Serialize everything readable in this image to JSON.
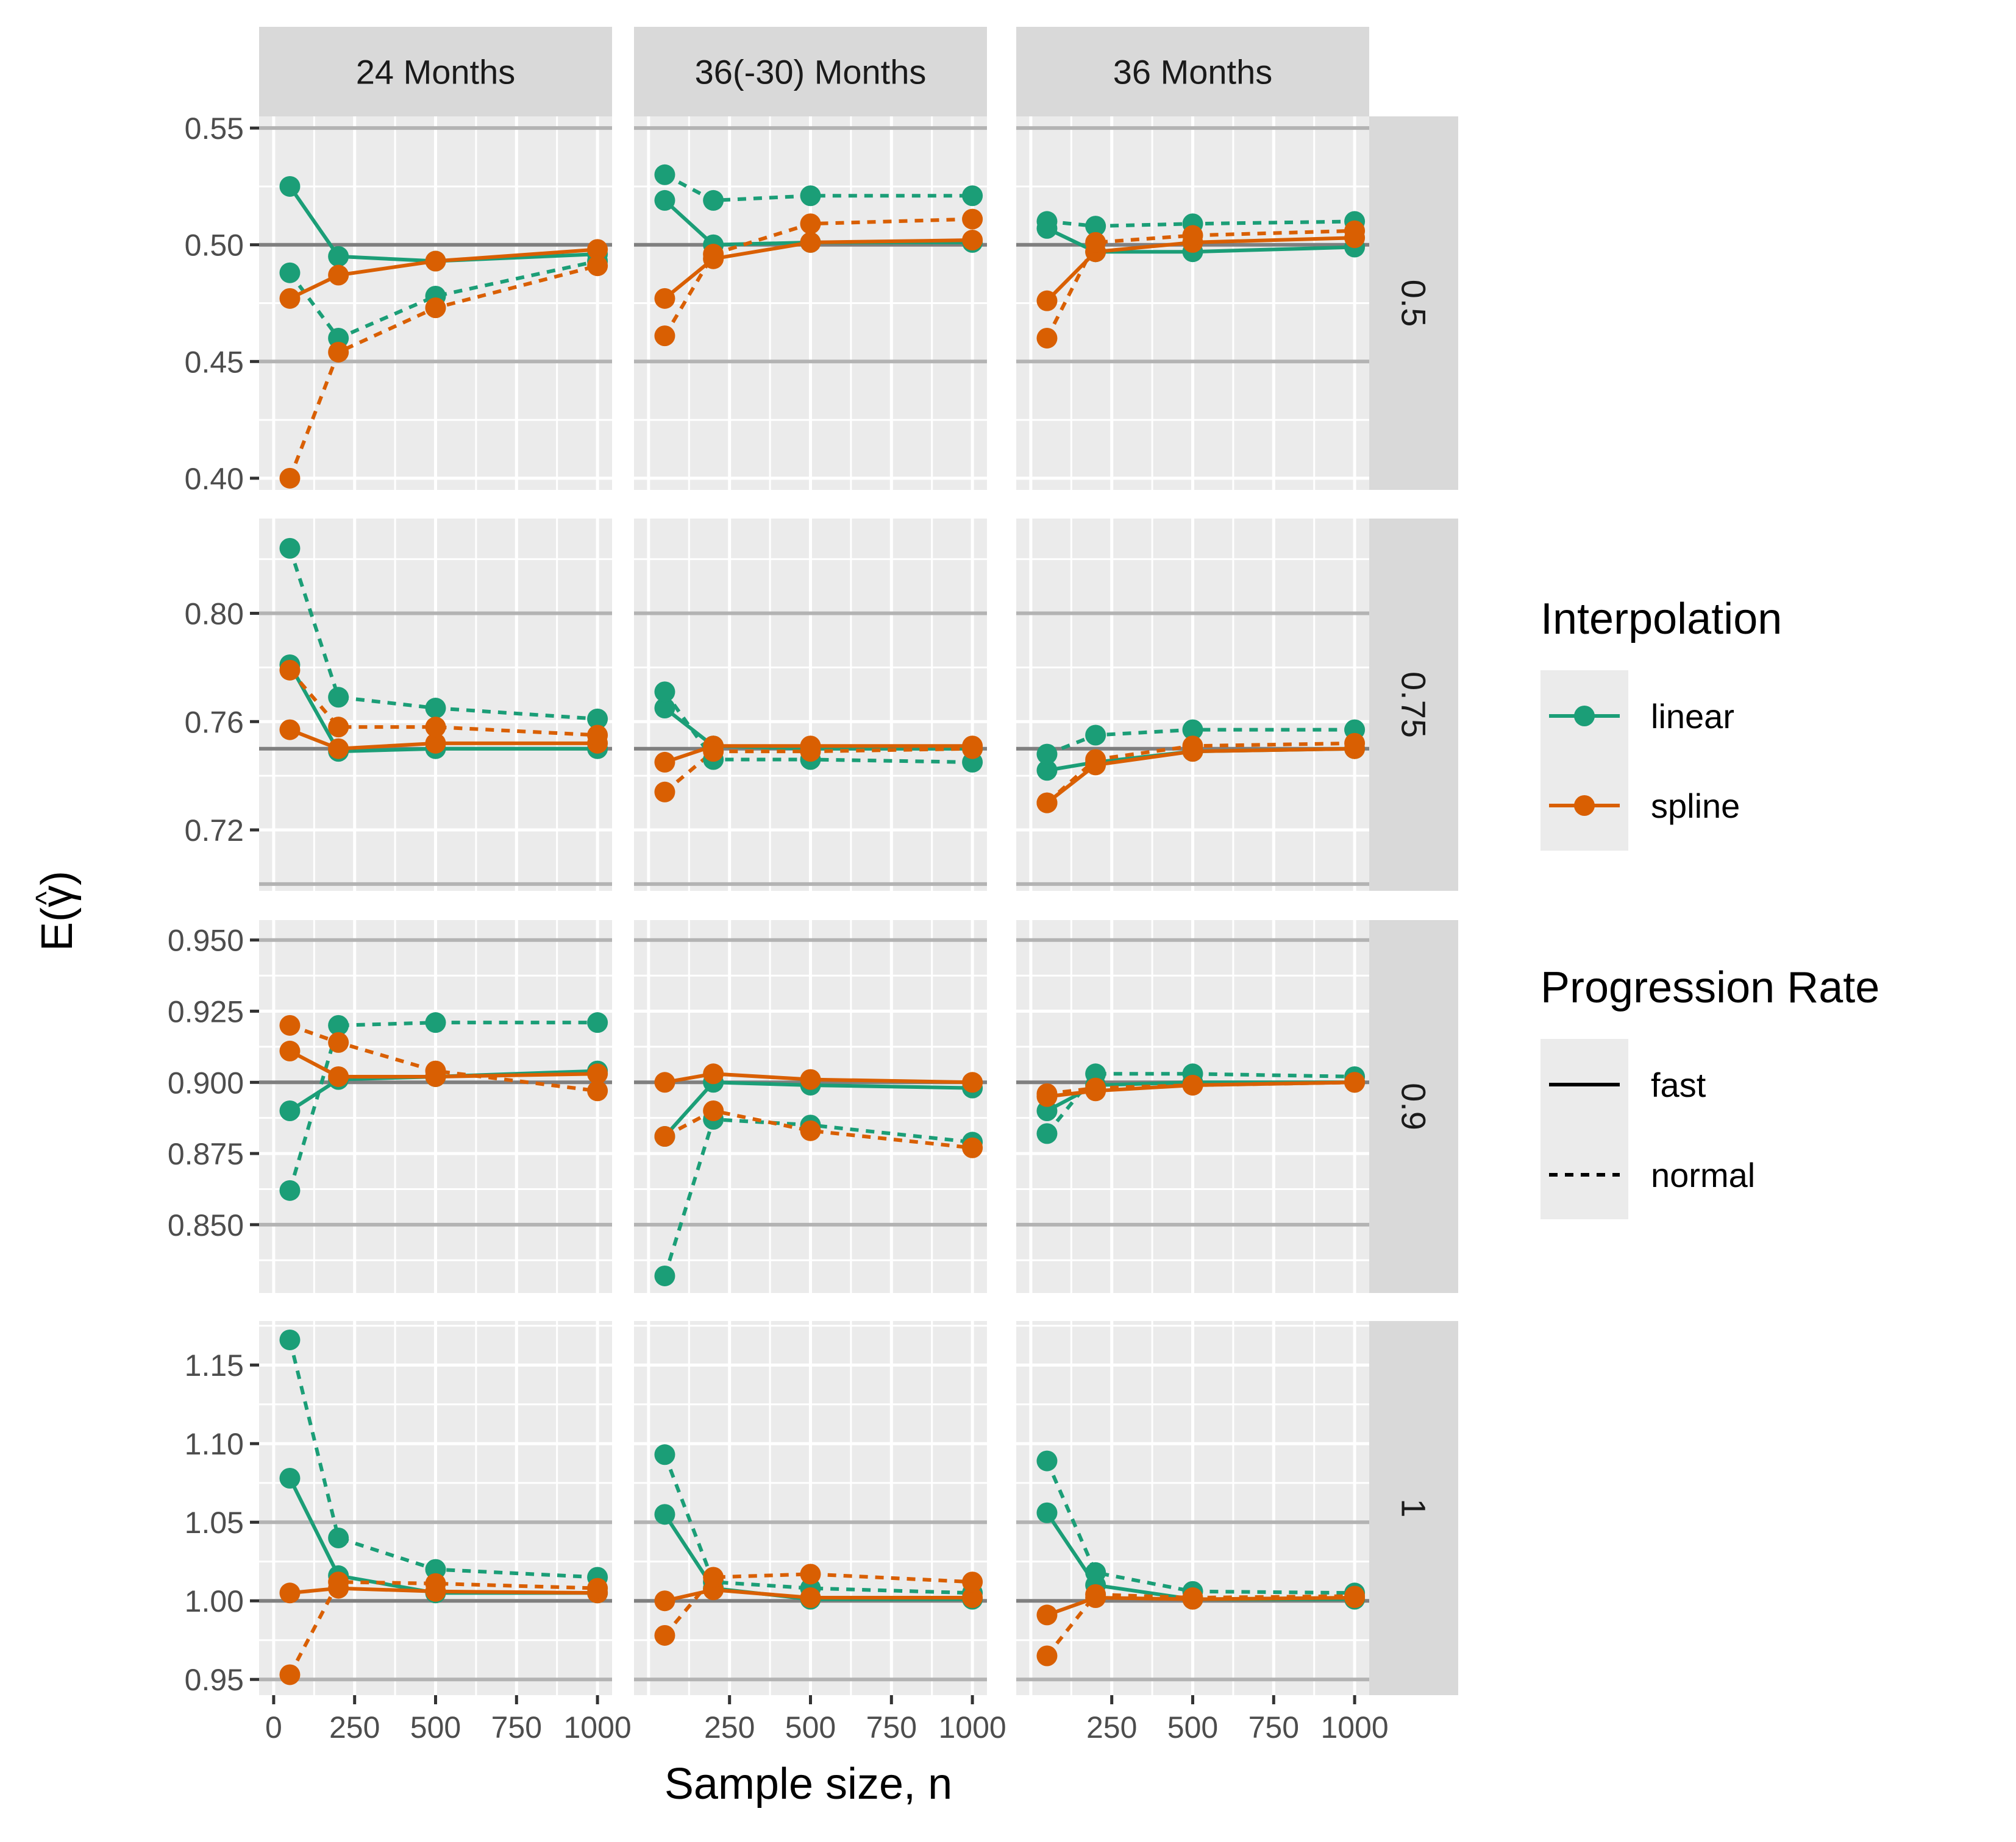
{
  "chart_data": {
    "type": "line",
    "xlabel": "Sample size, n",
    "ylabel_prefix": "E(",
    "ylabel_symbol": "γ",
    "ylabel_hat": "^",
    "ylabel_suffix": ")",
    "columns": [
      "24 Months",
      "36(-30) Months",
      "36 Months"
    ],
    "rows": [
      "0.5",
      "0.75",
      "0.9",
      "1"
    ],
    "x_ticks": [
      0,
      250,
      500,
      750,
      1000
    ],
    "x_tick_labels": [
      "0",
      "250",
      "500",
      "750",
      "1000"
    ],
    "xlim": [
      -45,
      1045
    ],
    "row_axes": [
      {
        "ylim": [
          0.395,
          0.555
        ],
        "ticks": [
          0.4,
          0.45,
          0.5,
          0.55
        ],
        "tick_labels": [
          "0.40",
          "0.45",
          "0.50",
          "0.55"
        ],
        "major": [
          0.45,
          0.55
        ],
        "ref": 0.5
      },
      {
        "ylim": [
          0.6975,
          0.835
        ],
        "ticks": [
          0.72,
          0.76,
          0.8
        ],
        "tick_labels": [
          "0.72",
          "0.76",
          "0.80"
        ],
        "major": [
          0.7,
          0.8
        ],
        "ref": 0.75
      },
      {
        "ylim": [
          0.826,
          0.957
        ],
        "ticks": [
          0.85,
          0.875,
          0.9,
          0.925,
          0.95
        ],
        "tick_labels": [
          "0.850",
          "0.875",
          "0.900",
          "0.925",
          "0.950"
        ],
        "major": [
          0.85,
          0.95
        ],
        "ref": 0.9
      },
      {
        "ylim": [
          0.94,
          1.178
        ],
        "ticks": [
          0.95,
          1.0,
          1.05,
          1.1,
          1.15
        ],
        "tick_labels": [
          "0.95",
          "1.00",
          "1.05",
          "1.10",
          "1.15"
        ],
        "major": [
          0.95,
          1.05
        ],
        "ref": 1.0
      }
    ],
    "colors": {
      "linear": "#1b9e77",
      "spline": "#d95f02",
      "background": "#ebebeb",
      "strip": "#d9d9d9",
      "grid": "#ffffff",
      "major_line": "#b3b3b3",
      "ref_line": "#7f7f7f"
    },
    "legend": {
      "interpolation_title": "Interpolation",
      "interpolation_items": [
        "linear",
        "spline"
      ],
      "rate_title": "Progression Rate",
      "rate_items": [
        "fast",
        "normal"
      ],
      "placement": "right"
    },
    "panels": [
      {
        "row": 0,
        "col": 0,
        "series": [
          {
            "interp": "linear",
            "rate": "fast",
            "x": [
              50,
              200,
              500,
              1000
            ],
            "y": [
              0.525,
              0.495,
              0.493,
              0.496
            ]
          },
          {
            "interp": "linear",
            "rate": "normal",
            "x": [
              50,
              200,
              500,
              1000
            ],
            "y": [
              0.488,
              0.46,
              0.478,
              0.493
            ]
          },
          {
            "interp": "spline",
            "rate": "fast",
            "x": [
              50,
              200,
              500,
              1000
            ],
            "y": [
              0.477,
              0.487,
              0.493,
              0.498
            ]
          },
          {
            "interp": "spline",
            "rate": "normal",
            "x": [
              50,
              200,
              500,
              1000
            ],
            "y": [
              0.4,
              0.454,
              0.473,
              0.491
            ]
          }
        ]
      },
      {
        "row": 0,
        "col": 1,
        "series": [
          {
            "interp": "linear",
            "rate": "fast",
            "x": [
              50,
              200,
              500,
              1000
            ],
            "y": [
              0.519,
              0.5,
              0.501,
              0.501
            ]
          },
          {
            "interp": "linear",
            "rate": "normal",
            "x": [
              50,
              200,
              500,
              1000
            ],
            "y": [
              0.53,
              0.519,
              0.521,
              0.521
            ]
          },
          {
            "interp": "spline",
            "rate": "fast",
            "x": [
              50,
              200,
              500,
              1000
            ],
            "y": [
              0.477,
              0.494,
              0.501,
              0.502
            ]
          },
          {
            "interp": "spline",
            "rate": "normal",
            "x": [
              50,
              200,
              500,
              1000
            ],
            "y": [
              0.461,
              0.496,
              0.509,
              0.511
            ]
          }
        ]
      },
      {
        "row": 0,
        "col": 2,
        "series": [
          {
            "interp": "linear",
            "rate": "fast",
            "x": [
              50,
              200,
              500,
              1000
            ],
            "y": [
              0.507,
              0.497,
              0.497,
              0.499
            ]
          },
          {
            "interp": "linear",
            "rate": "normal",
            "x": [
              50,
              200,
              500,
              1000
            ],
            "y": [
              0.51,
              0.508,
              0.509,
              0.51
            ]
          },
          {
            "interp": "spline",
            "rate": "fast",
            "x": [
              50,
              200,
              500,
              1000
            ],
            "y": [
              0.476,
              0.497,
              0.501,
              0.503
            ]
          },
          {
            "interp": "spline",
            "rate": "normal",
            "x": [
              50,
              200,
              500,
              1000
            ],
            "y": [
              0.46,
              0.501,
              0.504,
              0.506
            ]
          }
        ]
      },
      {
        "row": 1,
        "col": 0,
        "series": [
          {
            "interp": "linear",
            "rate": "fast",
            "x": [
              50,
              200,
              500,
              1000
            ],
            "y": [
              0.781,
              0.749,
              0.75,
              0.75
            ]
          },
          {
            "interp": "linear",
            "rate": "normal",
            "x": [
              50,
              200,
              500,
              1000
            ],
            "y": [
              0.824,
              0.769,
              0.765,
              0.761
            ]
          },
          {
            "interp": "spline",
            "rate": "fast",
            "x": [
              50,
              200,
              500,
              1000
            ],
            "y": [
              0.757,
              0.75,
              0.752,
              0.752
            ]
          },
          {
            "interp": "spline",
            "rate": "normal",
            "x": [
              50,
              200,
              500,
              1000
            ],
            "y": [
              0.779,
              0.758,
              0.758,
              0.755
            ]
          }
        ]
      },
      {
        "row": 1,
        "col": 1,
        "series": [
          {
            "interp": "linear",
            "rate": "fast",
            "x": [
              50,
              200,
              500,
              1000
            ],
            "y": [
              0.765,
              0.751,
              0.75,
              0.75
            ]
          },
          {
            "interp": "linear",
            "rate": "normal",
            "x": [
              50,
              200,
              500,
              1000
            ],
            "y": [
              0.771,
              0.746,
              0.746,
              0.745
            ]
          },
          {
            "interp": "spline",
            "rate": "fast",
            "x": [
              50,
              200,
              500,
              1000
            ],
            "y": [
              0.745,
              0.751,
              0.751,
              0.751
            ]
          },
          {
            "interp": "spline",
            "rate": "normal",
            "x": [
              50,
              200,
              500,
              1000
            ],
            "y": [
              0.734,
              0.749,
              0.749,
              0.75
            ]
          }
        ]
      },
      {
        "row": 1,
        "col": 2,
        "series": [
          {
            "interp": "linear",
            "rate": "fast",
            "x": [
              50,
              200,
              500,
              1000
            ],
            "y": [
              0.742,
              0.745,
              0.749,
              0.75
            ]
          },
          {
            "interp": "linear",
            "rate": "normal",
            "x": [
              50,
              200,
              500,
              1000
            ],
            "y": [
              0.748,
              0.755,
              0.757,
              0.757
            ]
          },
          {
            "interp": "spline",
            "rate": "fast",
            "x": [
              50,
              200,
              500,
              1000
            ],
            "y": [
              0.73,
              0.744,
              0.749,
              0.75
            ]
          },
          {
            "interp": "spline",
            "rate": "normal",
            "x": [
              50,
              200,
              500,
              1000
            ],
            "y": [
              0.73,
              0.746,
              0.751,
              0.752
            ]
          }
        ]
      },
      {
        "row": 2,
        "col": 0,
        "series": [
          {
            "interp": "linear",
            "rate": "fast",
            "x": [
              50,
              200,
              500,
              1000
            ],
            "y": [
              0.89,
              0.901,
              0.902,
              0.904
            ]
          },
          {
            "interp": "linear",
            "rate": "normal",
            "x": [
              50,
              200,
              500,
              1000
            ],
            "y": [
              0.862,
              0.92,
              0.921,
              0.921
            ]
          },
          {
            "interp": "spline",
            "rate": "fast",
            "x": [
              50,
              200,
              500,
              1000
            ],
            "y": [
              0.911,
              0.902,
              0.902,
              0.903
            ]
          },
          {
            "interp": "spline",
            "rate": "normal",
            "x": [
              50,
              200,
              500,
              1000
            ],
            "y": [
              0.92,
              0.914,
              0.904,
              0.897
            ]
          }
        ]
      },
      {
        "row": 2,
        "col": 1,
        "series": [
          {
            "interp": "linear",
            "rate": "fast",
            "x": [
              50,
              200,
              500,
              1000
            ],
            "y": [
              0.881,
              0.9,
              0.899,
              0.898
            ]
          },
          {
            "interp": "linear",
            "rate": "normal",
            "x": [
              50,
              200,
              500,
              1000
            ],
            "y": [
              0.832,
              0.887,
              0.885,
              0.879
            ]
          },
          {
            "interp": "spline",
            "rate": "fast",
            "x": [
              50,
              200,
              500,
              1000
            ],
            "y": [
              0.9,
              0.903,
              0.901,
              0.9
            ]
          },
          {
            "interp": "spline",
            "rate": "normal",
            "x": [
              50,
              200,
              500,
              1000
            ],
            "y": [
              0.881,
              0.89,
              0.883,
              0.877
            ]
          }
        ]
      },
      {
        "row": 2,
        "col": 2,
        "series": [
          {
            "interp": "linear",
            "rate": "fast",
            "x": [
              50,
              200,
              500,
              1000
            ],
            "y": [
              0.89,
              0.899,
              0.9,
              0.9
            ]
          },
          {
            "interp": "linear",
            "rate": "normal",
            "x": [
              50,
              200,
              500,
              1000
            ],
            "y": [
              0.882,
              0.903,
              0.903,
              0.902
            ]
          },
          {
            "interp": "spline",
            "rate": "fast",
            "x": [
              50,
              200,
              500,
              1000
            ],
            "y": [
              0.895,
              0.897,
              0.899,
              0.9
            ]
          },
          {
            "interp": "spline",
            "rate": "normal",
            "x": [
              50,
              200,
              500,
              1000
            ],
            "y": [
              0.896,
              0.898,
              0.899,
              0.9
            ]
          }
        ]
      },
      {
        "row": 3,
        "col": 0,
        "series": [
          {
            "interp": "linear",
            "rate": "fast",
            "x": [
              50,
              200,
              500,
              1000
            ],
            "y": [
              1.078,
              1.016,
              1.005,
              1.005
            ]
          },
          {
            "interp": "linear",
            "rate": "normal",
            "x": [
              50,
              200,
              500,
              1000
            ],
            "y": [
              1.166,
              1.04,
              1.02,
              1.015
            ]
          },
          {
            "interp": "spline",
            "rate": "fast",
            "x": [
              50,
              200,
              500,
              1000
            ],
            "y": [
              1.005,
              1.008,
              1.006,
              1.005
            ]
          },
          {
            "interp": "spline",
            "rate": "normal",
            "x": [
              50,
              200,
              500,
              1000
            ],
            "y": [
              0.953,
              1.012,
              1.011,
              1.008
            ]
          }
        ]
      },
      {
        "row": 3,
        "col": 1,
        "series": [
          {
            "interp": "linear",
            "rate": "fast",
            "x": [
              50,
              200,
              500,
              1000
            ],
            "y": [
              1.055,
              1.008,
              1.001,
              1.001
            ]
          },
          {
            "interp": "linear",
            "rate": "normal",
            "x": [
              50,
              200,
              500,
              1000
            ],
            "y": [
              1.093,
              1.012,
              1.008,
              1.005
            ]
          },
          {
            "interp": "spline",
            "rate": "fast",
            "x": [
              50,
              200,
              500,
              1000
            ],
            "y": [
              1.0,
              1.007,
              1.002,
              1.002
            ]
          },
          {
            "interp": "spline",
            "rate": "normal",
            "x": [
              50,
              200,
              500,
              1000
            ],
            "y": [
              0.978,
              1.015,
              1.017,
              1.012
            ]
          }
        ]
      },
      {
        "row": 3,
        "col": 2,
        "series": [
          {
            "interp": "linear",
            "rate": "fast",
            "x": [
              50,
              200,
              500,
              1000
            ],
            "y": [
              1.056,
              1.01,
              1.001,
              1.001
            ]
          },
          {
            "interp": "linear",
            "rate": "normal",
            "x": [
              50,
              200,
              500,
              1000
            ],
            "y": [
              1.089,
              1.018,
              1.006,
              1.005
            ]
          },
          {
            "interp": "spline",
            "rate": "fast",
            "x": [
              50,
              200,
              500,
              1000
            ],
            "y": [
              0.991,
              1.002,
              1.001,
              1.002
            ]
          },
          {
            "interp": "spline",
            "rate": "normal",
            "x": [
              50,
              200,
              500,
              1000
            ],
            "y": [
              0.965,
              1.004,
              1.002,
              1.003
            ]
          }
        ]
      }
    ]
  }
}
